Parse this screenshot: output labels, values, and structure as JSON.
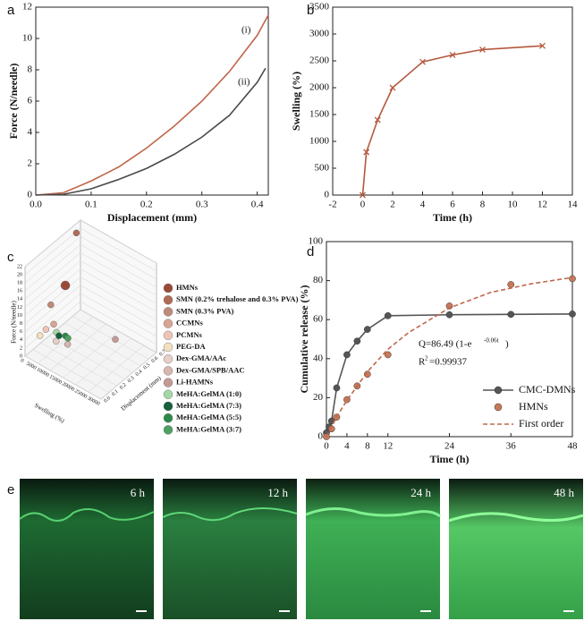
{
  "chart_data": [
    {
      "type": "line",
      "label": "a",
      "xlabel": "Displacement (mm)",
      "ylabel": "Force (N/needle)",
      "xlim": [
        0,
        0.42
      ],
      "xticks": [
        {
          "value": 0,
          "label": "0.0"
        },
        0.1,
        0.2,
        0.3,
        0.4
      ],
      "ylim": [
        0,
        12
      ],
      "yticks": [
        0,
        2,
        4,
        6,
        8,
        10,
        12
      ],
      "annotations": [
        "(i)",
        "(ii)"
      ],
      "series": [
        {
          "color": "#c0664a",
          "x": [
            0,
            0.05,
            0.1,
            0.15,
            0.2,
            0.25,
            0.3,
            0.35,
            0.4,
            0.42
          ],
          "values": [
            0,
            0.15,
            0.9,
            1.8,
            3.0,
            4.4,
            6.0,
            7.9,
            10.2,
            11.5
          ]
        },
        {
          "color": "#4a4a4a",
          "x": [
            0,
            0.05,
            0.1,
            0.15,
            0.2,
            0.25,
            0.3,
            0.35,
            0.4,
            0.415
          ],
          "values": [
            0,
            0.05,
            0.4,
            1.0,
            1.7,
            2.6,
            3.7,
            5.1,
            7.2,
            8.1
          ]
        }
      ]
    },
    {
      "type": "line",
      "label": "b",
      "xlabel": "Time (h)",
      "ylabel": "Swelling (%)",
      "xlim": [
        -2,
        14
      ],
      "xticks": [
        -2,
        0,
        2,
        4,
        6,
        8,
        10,
        12,
        14
      ],
      "ylim": [
        0,
        3500
      ],
      "yticks": [
        0,
        500,
        1000,
        1500,
        2000,
        2500,
        3000,
        3500
      ],
      "series": [
        {
          "color": "#b5583e",
          "marker": "x",
          "x": [
            0,
            0.25,
            1,
            2,
            4,
            6,
            8,
            12
          ],
          "values": [
            0,
            800,
            1400,
            2000,
            2480,
            2610,
            2710,
            2780
          ]
        }
      ]
    },
    {
      "type": "scatter3d",
      "label": "c",
      "xlabel": "Swelling (%)",
      "ylabel": "Displacement (mm)",
      "zlabel": "Force (N/needle)",
      "xlim": [
        0,
        30000
      ],
      "xticks": [
        0,
        5000,
        10000,
        15000,
        20000,
        25000,
        30000
      ],
      "ylim": [
        0,
        0.7
      ],
      "yticks": [
        {
          "value": 0,
          "label": "0.0"
        },
        0.1,
        0.2,
        0.3,
        0.4,
        0.5,
        0.6,
        0.7
      ],
      "zlim": [
        0,
        22
      ],
      "zticks": [
        0,
        2,
        4,
        6,
        8,
        10,
        12,
        14,
        16,
        18,
        20,
        22
      ],
      "series": [
        {
          "name": "HMNs",
          "color": "#9a4a36",
          "x": [
            2780
          ],
          "y": [
            0.42
          ],
          "z": [
            11.5
          ]
        },
        {
          "name": "SMN (0.2% trehalose and 0.3% PVA)",
          "color": "#b06a55",
          "x": [
            1500
          ],
          "y": [
            0.6
          ],
          "z": [
            21
          ]
        },
        {
          "name": "SMN (0.3% PVA)",
          "color": "#c08a78",
          "x": [
            800
          ],
          "y": [
            0.3
          ],
          "z": [
            8
          ]
        },
        {
          "name": "CCMNs",
          "color": "#d8a594",
          "x": [
            3500
          ],
          "y": [
            0.25
          ],
          "z": [
            5
          ]
        },
        {
          "name": "PCMNs",
          "color": "#eec5b5",
          "x": [
            2000
          ],
          "y": [
            0.2
          ],
          "z": [
            4
          ]
        },
        {
          "name": "PEG-DA",
          "color": "#f4e0bf",
          "x": [
            1200
          ],
          "y": [
            0.15
          ],
          "z": [
            3
          ]
        },
        {
          "name": "Dex-GMA/AAc",
          "color": "#e6cfc6",
          "x": [
            6000
          ],
          "y": [
            0.2
          ],
          "z": [
            2.5
          ]
        },
        {
          "name": "Dex-GMA/SPB/AAC",
          "color": "#d6b6ae",
          "x": [
            9000
          ],
          "y": [
            0.25
          ],
          "z": [
            2
          ]
        },
        {
          "name": "Li-HAMNs",
          "color": "#c49a98",
          "x": [
            20000
          ],
          "y": [
            0.5
          ],
          "z": [
            3
          ]
        },
        {
          "name": "MeHA:GelMA (1:0)",
          "color": "#a6d6a6",
          "x": [
            3000
          ],
          "y": [
            0.3
          ],
          "z": [
            2
          ]
        },
        {
          "name": "MeHA:GelMA (7:3)",
          "color": "#17603a",
          "x": [
            4000
          ],
          "y": [
            0.3
          ],
          "z": [
            1.5
          ]
        },
        {
          "name": "MeHA:GelMA (5:5)",
          "color": "#2a8a4a",
          "x": [
            5000
          ],
          "y": [
            0.35
          ],
          "z": [
            1
          ]
        },
        {
          "name": "MeHA:GelMA (3:7)",
          "color": "#4fa062",
          "x": [
            6000
          ],
          "y": [
            0.35
          ],
          "z": [
            0.8
          ]
        }
      ]
    },
    {
      "type": "line",
      "label": "d",
      "xlabel": "Time (h)",
      "ylabel": "Cumulative release (%)",
      "xlim": [
        0,
        48
      ],
      "xticks": [
        0,
        4,
        8,
        12,
        24,
        36,
        48
      ],
      "ylim": [
        0,
        100
      ],
      "yticks": [
        0,
        20,
        40,
        60,
        80,
        100
      ],
      "annotations": [
        "Q=86.49 (1-e",
        "-0.06t",
        ")",
        "R",
        "2",
        "=0.99937"
      ],
      "legend": "bottom-right",
      "series": [
        {
          "name": "CMC-DMNs",
          "color": "#555555",
          "marker": "circle",
          "x": [
            0,
            0.5,
            1,
            2,
            4,
            6,
            8,
            12,
            24,
            36,
            48
          ],
          "values": [
            2,
            5,
            8,
            25,
            42,
            49,
            55,
            62,
            62.5,
            62.7,
            62.9
          ]
        },
        {
          "name": "HMNs",
          "color": "#c8795a",
          "marker": "circle",
          "line": false,
          "x": [
            0,
            1,
            2,
            4,
            6,
            8,
            12,
            24,
            36,
            48
          ],
          "values": [
            0,
            4,
            10,
            19,
            26,
            32,
            42,
            67,
            78,
            81
          ]
        },
        {
          "name": "First order",
          "color": "#c0664a",
          "dash": true,
          "x": [
            0,
            2,
            4,
            8,
            12,
            16,
            24,
            32,
            40,
            48
          ],
          "values": [
            0,
            10.2,
            18.6,
            33.3,
            44.8,
            53.3,
            66.0,
            73.9,
            78.4,
            81.6
          ]
        }
      ]
    }
  ],
  "images": {
    "label": "e",
    "captions": [
      "6 h",
      "12 h",
      "24 h",
      "48 h"
    ]
  }
}
